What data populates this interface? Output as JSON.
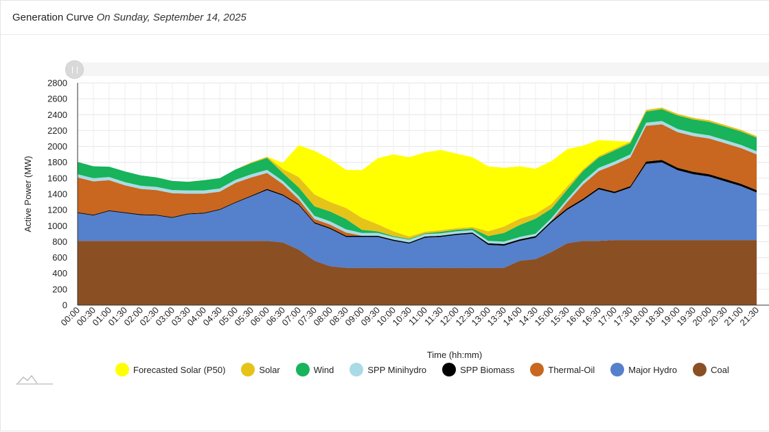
{
  "header": {
    "title": "Generation Curve",
    "date": "On Sunday, September 14, 2025"
  },
  "colors": {
    "forecast_solar": "#ffff00",
    "solar": "#e6c319",
    "wind": "#18b35a",
    "minihydro": "#a9dbe6",
    "biomass": "#000000",
    "thermal_oil": "#c9661f",
    "major_hydro": "#5580cc",
    "coal": "#8b4f24"
  },
  "chart_data": {
    "type": "area",
    "xlabel": "Time (hh:mm)",
    "ylabel": "Active Power (MW)",
    "ylim": [
      0,
      2800
    ],
    "yticks": [
      "0",
      "200",
      "400",
      "600",
      "800",
      "1000",
      "1200",
      "1400",
      "1600",
      "1800",
      "2000",
      "2200",
      "2400",
      "2600",
      "2800"
    ],
    "categories": [
      "00:00",
      "00:30",
      "01:00",
      "01:30",
      "02:00",
      "02:30",
      "03:00",
      "03:30",
      "04:00",
      "04:30",
      "05:00",
      "05:30",
      "06:00",
      "06:30",
      "07:00",
      "07:30",
      "08:00",
      "08:30",
      "09:00",
      "09:30",
      "10:00",
      "10:30",
      "11:00",
      "11:30",
      "12:00",
      "12:30",
      "13:00",
      "13:30",
      "14:00",
      "14:30",
      "15:00",
      "15:30",
      "16:00",
      "16:30",
      "17:00",
      "17:30",
      "18:00",
      "18:30",
      "19:00",
      "19:30",
      "20:00",
      "20:30",
      "21:00",
      "21:30"
    ],
    "grid": true,
    "stacked": true,
    "legend_position": "bottom",
    "series": [
      {
        "name": "Coal",
        "key": "coal",
        "values": [
          810,
          810,
          810,
          810,
          810,
          810,
          810,
          810,
          810,
          810,
          810,
          810,
          810,
          790,
          700,
          560,
          490,
          470,
          470,
          470,
          470,
          470,
          470,
          470,
          470,
          470,
          470,
          470,
          560,
          580,
          670,
          780,
          810,
          810,
          820,
          820,
          820,
          820,
          820,
          820,
          820,
          820,
          820,
          820
        ]
      },
      {
        "name": "Major Hydro",
        "key": "major_hydro",
        "values": [
          350,
          320,
          375,
          350,
          325,
          320,
          290,
          335,
          345,
          390,
          480,
          560,
          640,
          590,
          560,
          470,
          470,
          390,
          390,
          390,
          340,
          305,
          380,
          390,
          415,
          430,
          290,
          280,
          250,
          270,
          370,
          420,
          510,
          650,
          590,
          660,
          960,
          980,
          880,
          830,
          800,
          740,
          680,
          600
        ]
      },
      {
        "name": "SPP Biomass",
        "key": "biomass",
        "values": [
          10,
          10,
          10,
          10,
          10,
          10,
          10,
          10,
          10,
          10,
          10,
          10,
          15,
          15,
          15,
          15,
          15,
          15,
          15,
          15,
          15,
          15,
          15,
          15,
          15,
          15,
          20,
          20,
          20,
          20,
          20,
          20,
          20,
          20,
          20,
          20,
          30,
          30,
          30,
          30,
          30,
          30,
          30,
          30
        ]
      },
      {
        "name": "Thermal-Oil",
        "key": "thermal_oil",
        "values": [
          440,
          420,
          380,
          340,
          320,
          310,
          300,
          250,
          240,
          220,
          240,
          230,
          200,
          130,
          60,
          40,
          40,
          40,
          0,
          0,
          0,
          0,
          0,
          0,
          0,
          0,
          0,
          0,
          0,
          0,
          0,
          80,
          180,
          210,
          340,
          360,
          450,
          450,
          450,
          450,
          450,
          450,
          450,
          450
        ]
      },
      {
        "name": "SPP Minihydro",
        "key": "minihydro",
        "values": [
          40,
          40,
          40,
          40,
          40,
          40,
          40,
          40,
          40,
          40,
          40,
          40,
          40,
          40,
          40,
          40,
          40,
          40,
          35,
          35,
          35,
          35,
          30,
          30,
          30,
          30,
          30,
          30,
          30,
          30,
          35,
          35,
          40,
          40,
          40,
          40,
          40,
          40,
          40,
          40,
          40,
          40,
          40,
          40
        ]
      },
      {
        "name": "Wind",
        "key": "wind",
        "values": [
          155,
          150,
          130,
          135,
          130,
          120,
          115,
          110,
          130,
          130,
          130,
          140,
          150,
          100,
          110,
          120,
          125,
          130,
          40,
          20,
          10,
          10,
          10,
          20,
          20,
          20,
          60,
          110,
          150,
          190,
          120,
          120,
          130,
          130,
          140,
          140,
          140,
          150,
          170,
          170,
          170,
          170,
          170,
          170
        ]
      },
      {
        "name": "Solar",
        "key": "solar",
        "values": [
          0,
          0,
          0,
          0,
          0,
          0,
          0,
          0,
          0,
          0,
          0,
          10,
          15,
          50,
          130,
          150,
          120,
          140,
          150,
          90,
          60,
          30,
          20,
          20,
          20,
          20,
          60,
          80,
          80,
          60,
          60,
          40,
          20,
          20,
          20,
          20,
          20,
          20,
          20,
          20,
          20,
          20,
          20,
          20
        ]
      },
      {
        "name": "Forecasted Solar (P50)",
        "key": "forecast_solar",
        "values": [
          0,
          0,
          0,
          0,
          0,
          0,
          0,
          0,
          0,
          0,
          0,
          0,
          0,
          80,
          400,
          550,
          540,
          480,
          600,
          830,
          970,
          1000,
          1000,
          1010,
          940,
          880,
          820,
          740,
          660,
          570,
          540,
          470,
          300,
          200,
          100,
          0,
          0,
          0,
          0,
          0,
          0,
          0,
          0,
          0
        ]
      }
    ]
  },
  "legend": [
    {
      "label": "Forecasted Solar (P50)",
      "key": "forecast_solar"
    },
    {
      "label": "Solar",
      "key": "solar"
    },
    {
      "label": "Wind",
      "key": "wind"
    },
    {
      "label": "SPP Minihydro",
      "key": "minihydro"
    },
    {
      "label": "SPP Biomass",
      "key": "biomass"
    },
    {
      "label": "Thermal-Oil",
      "key": "thermal_oil"
    },
    {
      "label": "Major Hydro",
      "key": "major_hydro"
    },
    {
      "label": "Coal",
      "key": "coal"
    }
  ],
  "logo_icon": "mountain-logo-icon"
}
